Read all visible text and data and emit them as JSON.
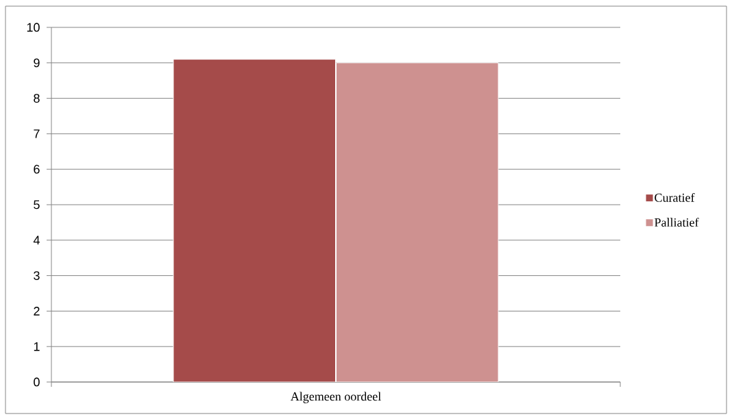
{
  "chart_data": {
    "type": "bar",
    "categories": [
      "Algemeen oordeel"
    ],
    "series": [
      {
        "name": "Curatief",
        "color": "#a54b4a",
        "values": [
          9.1
        ]
      },
      {
        "name": "Palliatief",
        "color": "#ce9190",
        "values": [
          9.0
        ]
      }
    ],
    "ylim": [
      0,
      10
    ],
    "yticks": [
      0,
      1,
      2,
      3,
      4,
      5,
      6,
      7,
      8,
      9,
      10
    ],
    "grid": "y",
    "legend": "right"
  }
}
